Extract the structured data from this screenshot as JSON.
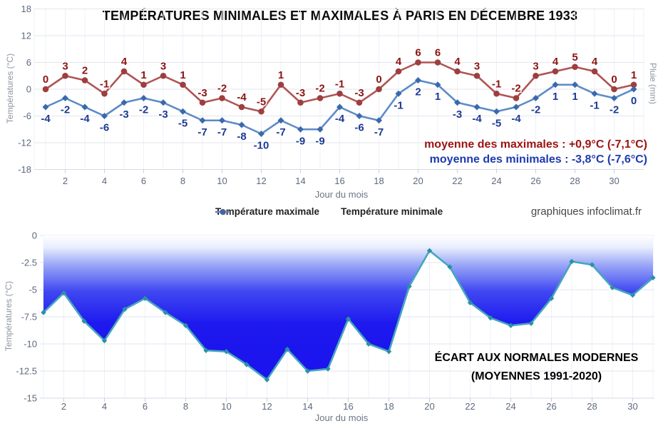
{
  "app": {
    "watermark": "graphiques infoclimat.fr"
  },
  "top_chart": {
    "title": "TEMPÉRATURES MINIMALES ET MAXIMALES À PARIS EN DÉCEMBRE 1933",
    "ylabel_left": "Températures (°C)",
    "ylabel_right": "Pluie (mm)",
    "xlabel": "Jour du mois",
    "legend_max": "Température maximale",
    "legend_min": "Température minimale",
    "annotation_max": "moyenne des maximales : +0,9°C (-7,1°C)",
    "annotation_min": "moyenne des minimales : -3,8°C (-7,6°C)"
  },
  "bottom_chart": {
    "ylabel": "Températures (°C)",
    "xlabel": "Jour du mois",
    "annotation_line1": "ÉCART AUX NORMALES MODERNES",
    "annotation_line2": "(MOYENNES 1991-2020)"
  },
  "chart_data": [
    {
      "type": "line",
      "title": "TEMPÉRATURES MINIMALES ET MAXIMALES À PARIS EN DÉCEMBRE 1933",
      "xlabel": "Jour du mois",
      "ylabel": "Températures (°C)",
      "ylabel_right": "Pluie (mm)",
      "x": [
        1,
        2,
        3,
        4,
        5,
        6,
        7,
        8,
        9,
        10,
        11,
        12,
        13,
        14,
        15,
        16,
        17,
        18,
        19,
        20,
        21,
        22,
        23,
        24,
        25,
        26,
        27,
        28,
        29,
        30,
        31
      ],
      "series": [
        {
          "name": "Température maximale",
          "marker": "circle",
          "line_color": "#b05454",
          "marker_color": "#9e3e3e",
          "label_color": "#8b1414",
          "values": [
            0,
            3,
            2,
            -1,
            4,
            1,
            3,
            1,
            -3,
            -2,
            -4,
            -5,
            1,
            -3,
            -2,
            -1,
            -3,
            0,
            4,
            6,
            6,
            4,
            3,
            -1,
            -2,
            3,
            4,
            5,
            4,
            0,
            1
          ]
        },
        {
          "name": "Température minimale",
          "marker": "diamond",
          "line_color": "#5c8bc7",
          "marker_color": "#3a69ad",
          "label_color": "#1c3a94",
          "values": [
            -4,
            -2,
            -4,
            -6,
            -3,
            -2,
            -3,
            -5,
            -7,
            -7,
            -8,
            -10,
            -7,
            -9,
            -9,
            -4,
            -6,
            -7,
            -1,
            2,
            1,
            -3,
            -4,
            -5,
            -4,
            -2,
            1,
            1,
            -1,
            -2,
            0
          ]
        }
      ],
      "ylim": [
        -18,
        18
      ],
      "yticks": [
        18,
        12,
        6,
        0,
        -6,
        -12,
        -18
      ],
      "xticks": [
        2,
        4,
        6,
        8,
        10,
        12,
        14,
        16,
        18,
        20,
        22,
        24,
        26,
        28,
        30
      ],
      "grid": true,
      "legend_position": "bottom",
      "annotations": [
        "moyenne des maximales : +0,9°C (-7,1°C)",
        "moyenne des minimales : -3,8°C (-7,6°C)"
      ],
      "mean_max": "+0,9°C",
      "mean_min": "-3,8°C",
      "ecart_mean_max": "-7,1°C",
      "ecart_mean_min": "-7,6°C"
    },
    {
      "type": "area",
      "title": "ÉCART AUX NORMALES MODERNES (MOYENNES 1991-2020)",
      "xlabel": "Jour du mois",
      "ylabel": "Températures (°C)",
      "x": [
        1,
        2,
        3,
        4,
        5,
        6,
        7,
        8,
        9,
        10,
        11,
        12,
        13,
        14,
        15,
        16,
        17,
        18,
        19,
        20,
        21,
        22,
        23,
        24,
        25,
        26,
        27,
        28,
        29,
        30,
        31
      ],
      "values": [
        -7.1,
        -5.3,
        -7.9,
        -9.7,
        -6.8,
        -5.8,
        -7.1,
        -8.3,
        -10.6,
        -10.7,
        -11.9,
        -13.3,
        -10.5,
        -12.5,
        -12.3,
        -7.7,
        -10.0,
        -10.7,
        -4.7,
        -1.4,
        -2.9,
        -6.2,
        -7.6,
        -8.3,
        -8.1,
        -5.8,
        -2.4,
        -2.7,
        -4.8,
        -5.5,
        -3.9
      ],
      "ylim": [
        -15,
        0
      ],
      "yticks": [
        0,
        -2.5,
        -5,
        -7.5,
        -10,
        -12.5,
        -15
      ],
      "xticks": [
        2,
        4,
        6,
        8,
        10,
        12,
        14,
        16,
        18,
        20,
        22,
        24,
        26,
        28,
        30
      ],
      "grid": true,
      "line_color": "#45a6bd",
      "marker_color": "#2b90a8",
      "fill_gradient": [
        {
          "offset": 0.0,
          "color": "#ffffff"
        },
        {
          "offset": 0.08,
          "color": "#e9eefe"
        },
        {
          "offset": 0.2,
          "color": "#9aa7f7"
        },
        {
          "offset": 0.38,
          "color": "#4048f1"
        },
        {
          "offset": 0.6,
          "color": "#1e19ef"
        },
        {
          "offset": 1.0,
          "color": "#1a12ed"
        }
      ]
    }
  ],
  "theme": {
    "grid_color": "#e3e6ef",
    "grid_color_light": "#eef0f6",
    "axis_line_color": "#d6dae4",
    "tick_mark_color": "#c9cedb",
    "tick_label_color": "#5d6a7e"
  }
}
